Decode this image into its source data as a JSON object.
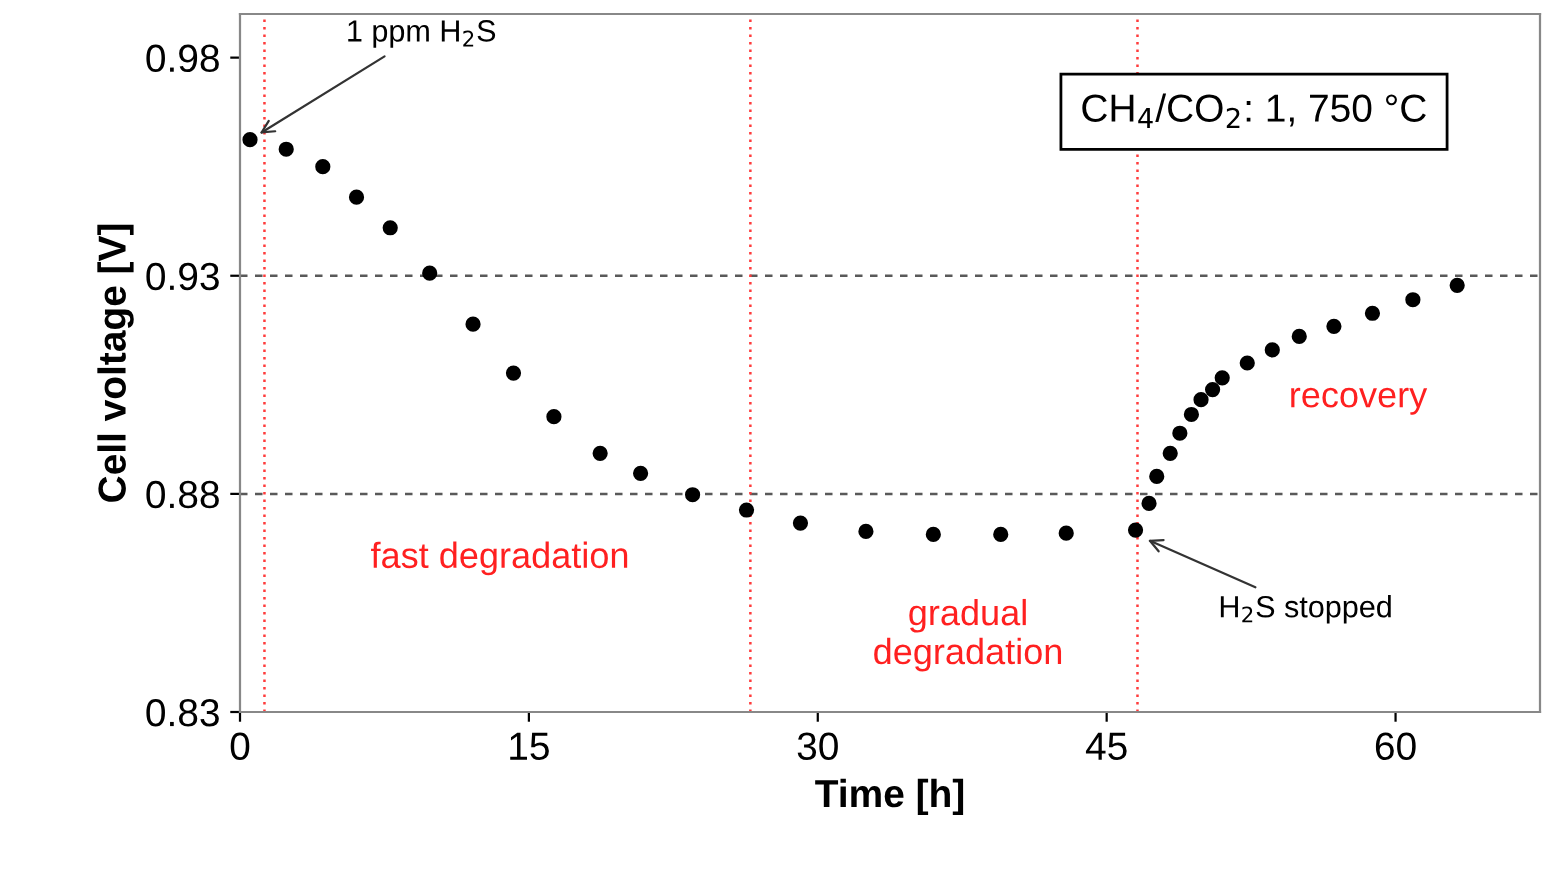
{
  "chart_data": {
    "type": "scatter",
    "xlabel": "Time [h]",
    "ylabel": "Cell voltage [V]",
    "xlim": [
      0,
      67.5
    ],
    "ylim": [
      0.83,
      0.99
    ],
    "xticks": [
      0,
      15,
      30,
      45,
      60
    ],
    "yticks": [
      0.83,
      0.88,
      0.93,
      0.98
    ],
    "grid": false,
    "marker": "circle",
    "series": [
      {
        "color": "#000000",
        "x": [
          0.52,
          2.4,
          4.3,
          6.05,
          7.8,
          9.85,
          12.1,
          14.2,
          16.3,
          18.7,
          20.8,
          23.5,
          26.3,
          29.1,
          32.5,
          36.0,
          39.5,
          42.9,
          46.5,
          47.2,
          47.6,
          48.3,
          48.8,
          49.4,
          49.9,
          50.5,
          51.0,
          52.3,
          53.6,
          55.0,
          56.8,
          58.8,
          60.9,
          63.2
        ],
        "values": [
          0.9612,
          0.959,
          0.955,
          0.948,
          0.941,
          0.9306,
          0.9189,
          0.9077,
          0.8977,
          0.8893,
          0.8847,
          0.8798,
          0.8763,
          0.8733,
          0.8714,
          0.8707,
          0.8707,
          0.871,
          0.8717,
          0.8778,
          0.884,
          0.8893,
          0.8939,
          0.8982,
          0.9016,
          0.9039,
          0.9066,
          0.91,
          0.913,
          0.9161,
          0.9184,
          0.9214,
          0.9245,
          0.9278
        ]
      }
    ],
    "ref_lines": [
      {
        "axis": "y",
        "value": 0.93,
        "color": "#595959",
        "line_style": "dashed"
      },
      {
        "axis": "y",
        "value": 0.88,
        "color": "#595959",
        "line_style": "dashed"
      },
      {
        "axis": "x",
        "value": 1.27,
        "color": "#ff3b3b",
        "line_style": "dotted"
      },
      {
        "axis": "x",
        "value": 26.5,
        "color": "#ff3b3b",
        "line_style": "dotted"
      },
      {
        "axis": "x",
        "value": 46.6,
        "color": "#ff3b3b",
        "line_style": "dotted"
      }
    ],
    "annotations": [
      {
        "text": "1 ppm H$_{2}$S",
        "x": 0.52,
        "y": 0.9612
      },
      {
        "text": "H$_{2}$S stopped",
        "x": 46.6,
        "y": 0.8705
      },
      "CH$_{4}$/CO$_{2}$: 1, 750 °C",
      "fast degradation",
      "gradual\ndegradation",
      "recovery"
    ]
  }
}
